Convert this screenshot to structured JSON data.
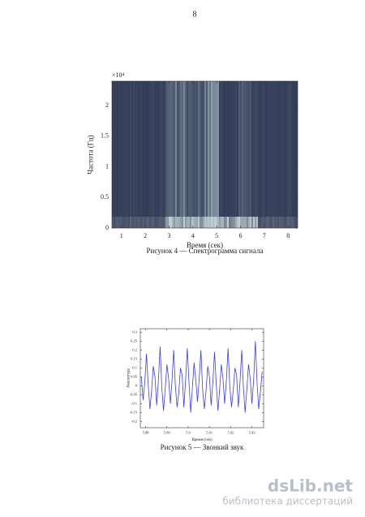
{
  "page_number": "8",
  "chart_data": [
    {
      "type": "spectrogram",
      "caption": "Рисунок 4 — Спектрограмма сигнала",
      "xlabel": "Время (сек)",
      "ylabel": "Частота (Гц)",
      "y_multiplier": "×10⁴",
      "xlim": [
        0.6,
        8.4
      ],
      "xticks": [
        1,
        2,
        3,
        4,
        5,
        6,
        7,
        8
      ],
      "ylim": [
        0,
        2.4
      ],
      "yticks": [
        0,
        0.5,
        1,
        1.5,
        2
      ]
    },
    {
      "type": "line",
      "caption": "Рисунок 5 — Звонкий звук",
      "xlabel": "Время (сек)",
      "ylabel": "Амплитуда",
      "color": "#3a3aff",
      "xlim": [
        5.8775,
        5.9355
      ],
      "xticks": [
        5.88,
        5.89,
        5.9,
        5.91,
        5.92,
        5.93
      ],
      "ylim": [
        -0.235,
        0.32
      ],
      "yticks": [
        -0.2,
        -0.15,
        -0.1,
        -0.05,
        0,
        0.05,
        0.1,
        0.15,
        0.2,
        0.25,
        0.3
      ],
      "x": [
        5.878,
        5.8788,
        5.8796,
        5.8804,
        5.8812,
        5.882,
        5.8828,
        5.8836,
        5.8844,
        5.8852,
        5.886,
        5.8868,
        5.8876,
        5.8884,
        5.8892,
        5.89,
        5.8908,
        5.8916,
        5.8924,
        5.8932,
        5.894,
        5.8948,
        5.8956,
        5.8964,
        5.8972,
        5.898,
        5.8988,
        5.8996,
        5.9004,
        5.9012,
        5.902,
        5.9028,
        5.9036,
        5.9044,
        5.9052,
        5.906,
        5.9068,
        5.9076,
        5.9084,
        5.9092,
        5.91,
        5.9108,
        5.9116,
        5.9124,
        5.9132,
        5.914,
        5.9148,
        5.9156,
        5.9164,
        5.9172,
        5.918,
        5.9188,
        5.9196,
        5.9204,
        5.9212,
        5.922,
        5.9228,
        5.9236,
        5.9244,
        5.9252,
        5.926,
        5.9268,
        5.9276,
        5.9284,
        5.9292,
        5.93,
        5.9308,
        5.9316,
        5.9324,
        5.9332,
        5.934,
        5.9348
      ],
      "values": [
        0.05,
        -0.08,
        0.02,
        0.18,
        0.01,
        -0.13,
        -0.03,
        0.11,
        0.05,
        -0.11,
        0.03,
        0.22,
        -0.01,
        -0.14,
        -0.02,
        0.12,
        0.04,
        -0.1,
        0.02,
        0.2,
        0.0,
        -0.12,
        -0.04,
        0.1,
        0.06,
        -0.12,
        0.03,
        0.21,
        0.02,
        -0.15,
        -0.01,
        0.13,
        0.03,
        -0.09,
        0.04,
        0.2,
        -0.02,
        -0.13,
        -0.03,
        0.11,
        0.05,
        -0.11,
        0.02,
        0.19,
        0.01,
        -0.14,
        -0.02,
        0.12,
        0.04,
        -0.1,
        0.03,
        0.21,
        0.0,
        -0.12,
        -0.03,
        0.1,
        0.06,
        -0.12,
        0.02,
        0.2,
        -0.01,
        -0.15,
        -0.02,
        0.12,
        0.04,
        -0.1,
        0.03,
        0.25,
        0.02,
        -0.13,
        -0.03,
        0.08
      ]
    }
  ],
  "watermark": {
    "title": "dsLib.net",
    "subtitle": "библиотека диссертаций"
  }
}
